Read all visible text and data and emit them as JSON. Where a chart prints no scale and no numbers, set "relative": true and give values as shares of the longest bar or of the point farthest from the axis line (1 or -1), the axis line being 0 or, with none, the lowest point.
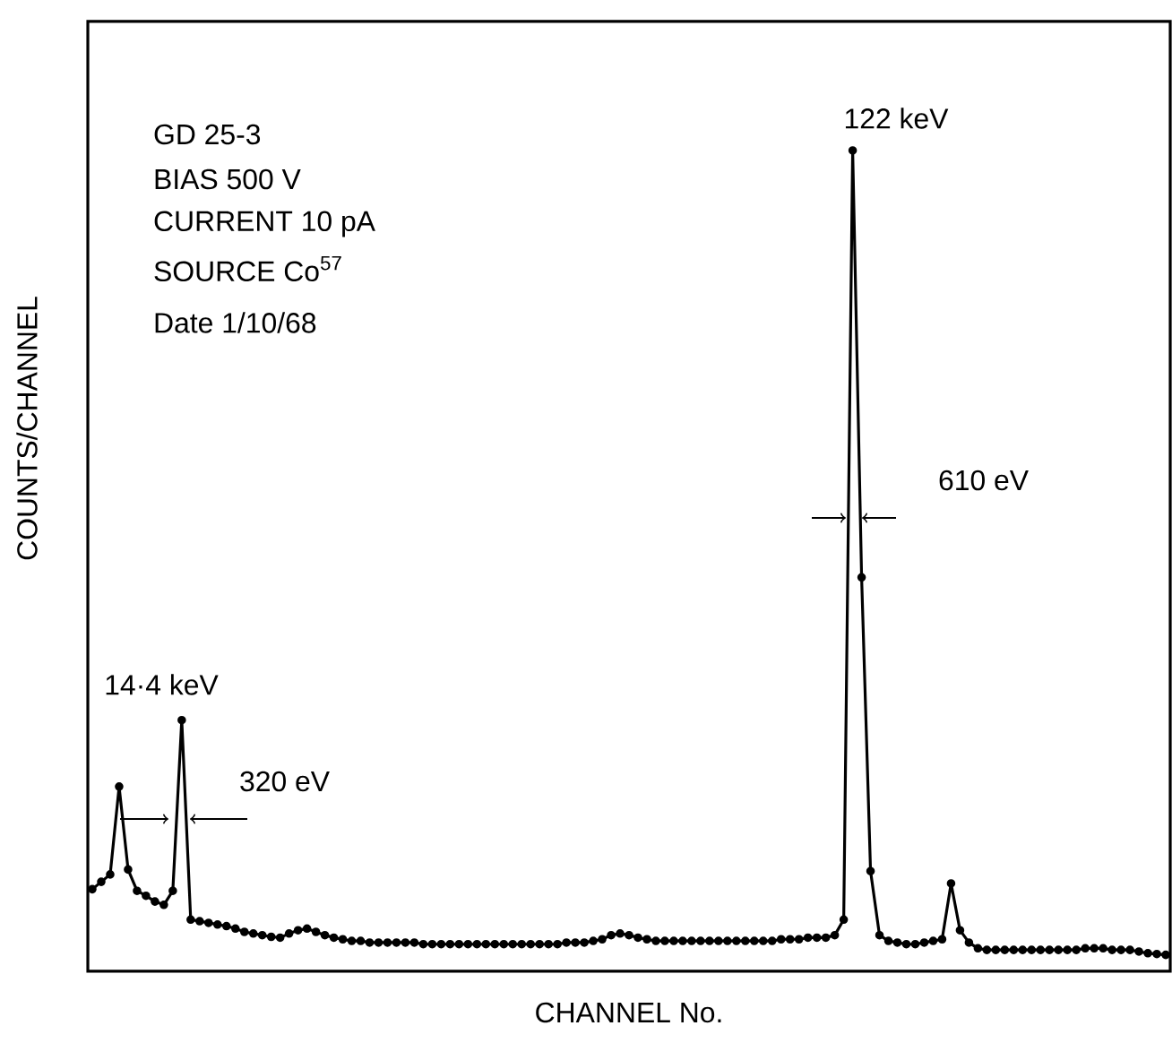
{
  "chart_data": {
    "type": "line",
    "relative": true,
    "xlabel": "CHANNEL No.",
    "ylabel": "COUNTS/CHANNEL",
    "categories": [
      null,
      null,
      null,
      null,
      null,
      null,
      null,
      null,
      null,
      null,
      null,
      null,
      null,
      null,
      null,
      null,
      null,
      null,
      null,
      null,
      null,
      null,
      null,
      null,
      null,
      null,
      null,
      null,
      null,
      null,
      null,
      null,
      null,
      null,
      null,
      null,
      null,
      null,
      null,
      null,
      null,
      null,
      null,
      null,
      null,
      null,
      null,
      null,
      null,
      null,
      null,
      null,
      null,
      null,
      null,
      null,
      null,
      null,
      null,
      null,
      null,
      null,
      null,
      null,
      null,
      null,
      null,
      null,
      null,
      null,
      null,
      null,
      null,
      null,
      null,
      null,
      null,
      null,
      null,
      null,
      null,
      null,
      null,
      null,
      null,
      null,
      null,
      null,
      null,
      null,
      null,
      null,
      null,
      null,
      null,
      null,
      null,
      null,
      null,
      null,
      null,
      null,
      null,
      null,
      null,
      null,
      null,
      null,
      null,
      null,
      null,
      null,
      null,
      null,
      null,
      null,
      null,
      null,
      null,
      null,
      null
    ],
    "values": [
      0.1,
      0.109,
      0.118,
      0.225,
      0.124,
      0.098,
      0.092,
      0.085,
      0.081,
      0.098,
      0.306,
      0.063,
      0.061,
      0.059,
      0.057,
      0.055,
      0.052,
      0.048,
      0.046,
      0.044,
      0.042,
      0.041,
      0.046,
      0.05,
      0.052,
      0.048,
      0.044,
      0.041,
      0.039,
      0.037,
      0.037,
      0.035,
      0.035,
      0.035,
      0.035,
      0.035,
      0.035,
      0.033,
      0.033,
      0.033,
      0.033,
      0.033,
      0.033,
      0.033,
      0.033,
      0.033,
      0.033,
      0.033,
      0.033,
      0.033,
      0.033,
      0.033,
      0.033,
      0.035,
      0.035,
      0.035,
      0.037,
      0.039,
      0.044,
      0.046,
      0.044,
      0.041,
      0.039,
      0.037,
      0.037,
      0.037,
      0.037,
      0.037,
      0.037,
      0.037,
      0.037,
      0.037,
      0.037,
      0.037,
      0.037,
      0.037,
      0.037,
      0.039,
      0.039,
      0.039,
      0.041,
      0.041,
      0.041,
      0.044,
      0.063,
      1.0,
      0.48,
      0.122,
      0.044,
      0.037,
      0.035,
      0.033,
      0.033,
      0.035,
      0.037,
      0.039,
      0.107,
      0.05,
      0.035,
      0.028,
      0.026,
      0.026,
      0.026,
      0.026,
      0.026,
      0.026,
      0.026,
      0.026,
      0.026,
      0.026,
      0.026,
      0.028,
      0.028,
      0.028,
      0.026,
      0.026,
      0.026,
      0.024,
      0.022,
      0.021,
      0.02
    ],
    "color": "#000000",
    "marker": "circle",
    "tick_labels": false,
    "annotations": [
      "GD 25-3",
      "BIAS 500 V",
      "CURRENT 10 pA",
      "SOURCE Co$^{57}$",
      "Date 1/10/68",
      "122 keV",
      "610 eV",
      "14·4 keV",
      "320 eV"
    ]
  }
}
